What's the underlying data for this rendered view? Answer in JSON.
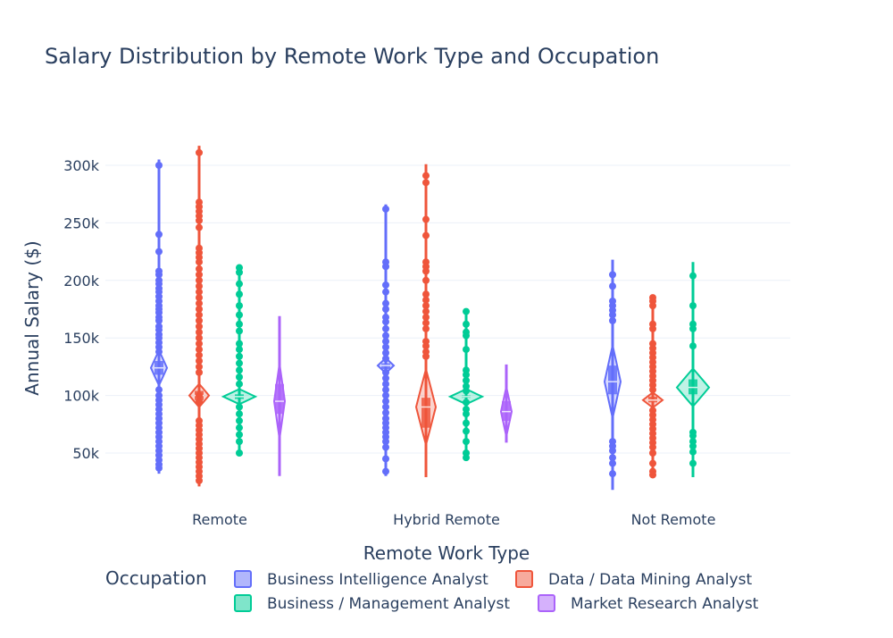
{
  "chart_data": {
    "type": "violin",
    "title": "Salary Distribution by Remote Work Type and Occupation",
    "xlabel": "Remote Work Type",
    "ylabel": "Annual Salary ($)",
    "categories": [
      "Remote",
      "Hybrid Remote",
      "Not Remote"
    ],
    "y_ticks": [
      {
        "value": 50000,
        "label": "50k"
      },
      {
        "value": 100000,
        "label": "100k"
      },
      {
        "value": 150000,
        "label": "150k"
      },
      {
        "value": 200000,
        "label": "200k"
      },
      {
        "value": 250000,
        "label": "250k"
      },
      {
        "value": 300000,
        "label": "300k"
      }
    ],
    "ylim": [
      15000,
      320000
    ],
    "grid": true,
    "legend_title": "Occupation",
    "legend_placement": "bottom",
    "series": [
      {
        "name": "Business Intelligence Analyst",
        "color": "#636efa",
        "groups": [
          {
            "category": "Remote",
            "min": 32000,
            "max": 305000,
            "q1": 118000,
            "median": 124000,
            "q3": 130000,
            "points": [
              300000,
              240000,
              225000,
              208000,
              205000,
              200000,
              197000,
              193000,
              190000,
              186000,
              182000,
              178000,
              175000,
              172000,
              168000,
              165000,
              160000,
              157000,
              153000,
              150000,
              146000,
              142000,
              138000,
              105000,
              100000,
              96000,
              92000,
              88000,
              84000,
              80000,
              76000,
              72000,
              68000,
              64000,
              60000,
              56000,
              52000,
              48000,
              44000,
              40000,
              37000
            ]
          },
          {
            "category": "Hybrid Remote",
            "min": 30000,
            "max": 266000,
            "q1": 123000,
            "median": 126000,
            "q3": 128000,
            "points": [
              262000,
              216000,
              212000,
              196000,
              190000,
              180000,
              175000,
              168000,
              164000,
              158000,
              152000,
              147000,
              142000,
              137000,
              132000,
              120000,
              115000,
              110000,
              105000,
              100000,
              95000,
              90000,
              85000,
              80000,
              76000,
              72000,
              68000,
              64000,
              60000,
              55000,
              45000,
              34000
            ]
          },
          {
            "category": "Not Remote",
            "min": 18000,
            "max": 218000,
            "q1": 101000,
            "median": 112000,
            "q3": 126000,
            "points": [
              205000,
              195000,
              182000,
              178000,
              174000,
              170000,
              165000,
              60000,
              56000,
              52000,
              46000,
              41000,
              32000
            ]
          }
        ]
      },
      {
        "name": "Data / Data Mining Analyst",
        "color": "#ef553b",
        "groups": [
          {
            "category": "Remote",
            "min": 21000,
            "max": 317000,
            "q1": 96000,
            "median": 100000,
            "q3": 104000,
            "points": [
              311000,
              268000,
              264000,
              260000,
              256000,
              252000,
              246000,
              228000,
              224000,
              220000,
              216000,
              210000,
              205000,
              200000,
              195000,
              190000,
              185000,
              180000,
              175000,
              170000,
              165000,
              160000,
              155000,
              150000,
              145000,
              140000,
              135000,
              130000,
              125000,
              120000,
              100000,
              95000,
              78000,
              74000,
              70000,
              66000,
              62000,
              58000,
              54000,
              50000,
              46000,
              42000,
              38000,
              34000,
              30000,
              26000
            ]
          },
          {
            "category": "Hybrid Remote",
            "min": 29000,
            "max": 301000,
            "q1": 72000,
            "median": 90000,
            "q3": 98000,
            "points": [
              291000,
              285000,
              253000,
              239000,
              216000,
              212000,
              208000,
              200000,
              188000,
              183000,
              178000,
              173000,
              168000,
              163000,
              158000,
              147000,
              143000,
              138000,
              134000
            ]
          },
          {
            "category": "Not Remote",
            "min": 29000,
            "max": 187000,
            "q1": 94000,
            "median": 96000,
            "q3": 99000,
            "points": [
              185000,
              182000,
              178000,
              162000,
              158000,
              145000,
              141000,
              137000,
              133000,
              129000,
              125000,
              121000,
              117000,
              113000,
              109000,
              105000,
              87000,
              83000,
              79000,
              75000,
              71000,
              67000,
              63000,
              59000,
              55000,
              50000,
              41000,
              34000,
              31000
            ]
          }
        ]
      },
      {
        "name": "Business / Management Analyst",
        "color": "#00cc96",
        "groups": [
          {
            "category": "Remote",
            "min": 48000,
            "max": 214000,
            "q1": 97000,
            "median": 99000,
            "q3": 101000,
            "points": [
              211000,
              207000,
              197000,
              188000,
              178000,
              170000,
              162000,
              156000,
              145000,
              140000,
              134000,
              128000,
              122000,
              116000,
              110000,
              90000,
              84000,
              78000,
              72000,
              66000,
              60000,
              50000
            ]
          },
          {
            "category": "Hybrid Remote",
            "min": 45000,
            "max": 173000,
            "q1": 98000,
            "median": 99000,
            "q3": 100000,
            "points": [
              173000,
              162000,
              155000,
              152000,
              140000,
              122000,
              118000,
              113000,
              108000,
              104000,
              94000,
              88000,
              84000,
              76000,
              69000,
              60000,
              50000,
              46000
            ]
          },
          {
            "category": "Not Remote",
            "min": 29000,
            "max": 216000,
            "q1": 101000,
            "median": 107000,
            "q3": 114000,
            "points": [
              204000,
              178000,
              162000,
              158000,
              143000,
              68000,
              65000,
              60000,
              56000,
              51000,
              41000
            ]
          }
        ]
      },
      {
        "name": "Market Research Analyst",
        "color": "#ab63fa",
        "groups": [
          {
            "category": "Remote",
            "min": 30000,
            "max": 169000,
            "q1": 84000,
            "median": 95000,
            "q3": 110000,
            "points": []
          },
          {
            "category": "Hybrid Remote",
            "min": 59000,
            "max": 127000,
            "q1": 78000,
            "median": 86000,
            "q3": 95000,
            "points": []
          }
        ]
      }
    ]
  }
}
